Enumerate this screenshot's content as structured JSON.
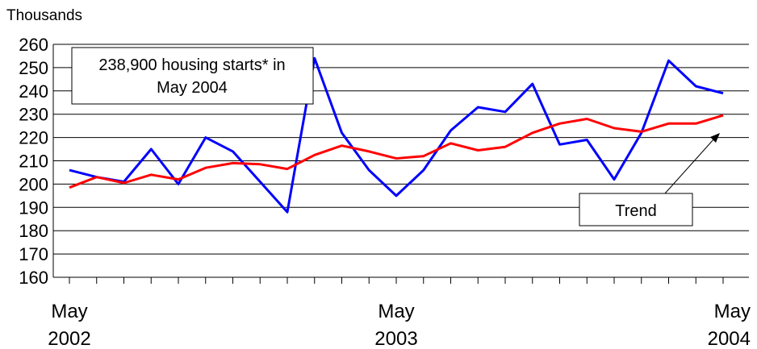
{
  "chart_data": {
    "type": "line",
    "unit_label": "Thousands",
    "ylim": [
      160,
      260
    ],
    "yticks": [
      "160",
      "170",
      "180",
      "190",
      "200",
      "210",
      "220",
      "230",
      "240",
      "250",
      "260"
    ],
    "x_tick_labels": [
      {
        "month": "May",
        "year": "2002",
        "index": 0
      },
      {
        "month": "May",
        "year": "2003",
        "index": 12
      },
      {
        "month": "May",
        "year": "2004",
        "index": 24
      }
    ],
    "x": [
      "May 2002",
      "Jun 2002",
      "Jul 2002",
      "Aug 2002",
      "Sep 2002",
      "Oct 2002",
      "Nov 2002",
      "Dec 2002",
      "Jan 2003",
      "Feb 2003",
      "Mar 2003",
      "Apr 2003",
      "May 2003",
      "Jun 2003",
      "Jul 2003",
      "Aug 2003",
      "Sep 2003",
      "Oct 2003",
      "Nov 2003",
      "Dec 2003",
      "Jan 2004",
      "Feb 2004",
      "Mar 2004",
      "Apr 2004",
      "May 2004"
    ],
    "grid": true,
    "series": [
      {
        "id": "actual",
        "color": "#0000ff",
        "values": [
          206,
          203,
          201,
          215,
          200,
          220,
          214,
          201,
          188,
          254,
          222,
          206,
          195,
          206,
          223,
          233,
          231,
          243,
          217,
          219,
          202,
          222,
          253,
          242,
          239
        ]
      },
      {
        "id": "trend",
        "name": "Trend",
        "color": "#ff0000",
        "values": [
          198.5,
          203,
          200.5,
          204,
          202,
          207,
          209,
          208.5,
          206.5,
          212.5,
          216.5,
          214,
          211,
          212,
          217.5,
          214.5,
          216,
          222,
          226,
          228,
          224,
          222.5,
          226,
          226,
          229.5
        ]
      }
    ],
    "annotations": {
      "callout_line1": "238,900 housing starts* in",
      "callout_line2": "May 2004",
      "trend_label": "Trend"
    }
  }
}
